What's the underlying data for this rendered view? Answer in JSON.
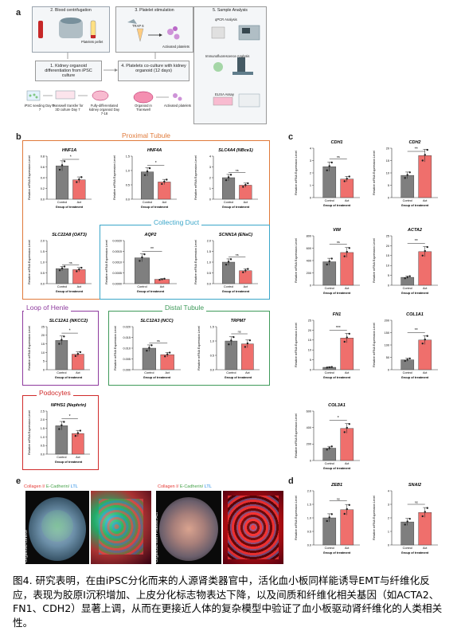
{
  "panel_letters": {
    "a": "a",
    "b": "b",
    "c": "c",
    "d": "d",
    "e": "e"
  },
  "panel_a": {
    "step2": "2. Blood centrifugation",
    "step3": "3. Platelet stimulation",
    "step5": "5. Sample Analysis",
    "platelets_pellet": "Platelets pellet",
    "trap6": "TRAP 6",
    "activated_platelets": "Activated platelets",
    "step1": "1. Kidney organoid differentiation from iPSC culture",
    "step4": "4. Platelets co-culture with kidney organoid (12 days)",
    "qpcr": "qPCR Analysis",
    "if_analysis": "Immunofluorescence Analysis",
    "elisa": "ELISA Assay",
    "ipsc_seeding": "iPSC seeding Day 0-7",
    "transwell": "Transwell transfer for 3D culture Day 7",
    "fully_diff": "Fully-differentiated kidney organoid Day 7-18",
    "organoid_transwell": "Organoid in Transwell",
    "activated_platelets2": "Activated platelets"
  },
  "sections": {
    "proximal": "Proximal Tubule",
    "collecting": "Collecting Duct",
    "henle": "Loop of Henle",
    "distal": "Distal Tubule",
    "podocytes": "Podocytes"
  },
  "colors": {
    "control": "#7f7f7f",
    "act": "#ef6f6c",
    "proximal": "#e07a3a",
    "collecting": "#3aa6c9",
    "henle": "#8e3a9e",
    "distal": "#3f9a5a",
    "podocytes": "#d02a2a",
    "step_border": "#9aa4ae"
  },
  "axis_common": {
    "ylabel": "Relative mRNA Expression Level",
    "xlabel": "Group of treatment",
    "control": "Control",
    "act": "Act"
  },
  "charts": [
    {
      "id": "hnf1a",
      "gene": "HNF1A",
      "sig": "*",
      "ticks": [
        "0.0",
        "0.2",
        "0.4",
        "0.6",
        "0.8"
      ],
      "ymax": 0.8,
      "values": [
        0.62,
        0.36
      ]
    },
    {
      "id": "hnf4a",
      "gene": "HNF4A",
      "sig": "*",
      "ticks": [
        "0.0",
        "0.5",
        "1.0",
        "1.5"
      ],
      "ymax": 1.5,
      "values": [
        0.95,
        0.6
      ]
    },
    {
      "id": "slc4a4",
      "gene": "SLC4A4 (NBce1)",
      "sig": "ns",
      "ticks": [
        "0",
        "1",
        "2",
        "3",
        "4"
      ],
      "ymax": 4,
      "values": [
        2.0,
        1.3
      ]
    },
    {
      "id": "slc22a8",
      "gene": "SLC22A8 (OAT3)",
      "sig": "ns",
      "ticks": [
        "0.0",
        "0.5",
        "1.0",
        "1.5",
        "2.0"
      ],
      "ymax": 2.0,
      "values": [
        0.7,
        0.65
      ]
    },
    {
      "id": "aqp2",
      "gene": "AQP2",
      "sig": "**",
      "ticks": [
        "0.0000",
        "0.0005",
        "0.0010",
        "0.0015",
        "0.0020"
      ],
      "ymax": 0.002,
      "values": [
        0.0012,
        0.0002
      ]
    },
    {
      "id": "scnn1a",
      "gene": "SCNN1A (ENaC)",
      "sig": "ns",
      "ticks": [
        "0.0",
        "0.5",
        "1.0",
        "1.5",
        "2.0"
      ],
      "ymax": 2.0,
      "values": [
        1.0,
        0.6
      ]
    },
    {
      "id": "slc12a1",
      "gene": "SLC12A1 (NKCC2)",
      "sig": "*",
      "ticks": [
        "0",
        "5",
        "10",
        "15",
        "20",
        "25"
      ],
      "ymax": 25,
      "values": [
        17,
        9
      ]
    },
    {
      "id": "slc12a3",
      "gene": "SLC12A3 (NCC)",
      "sig": "ns",
      "ticks": [
        "0.000",
        "0.005",
        "0.010",
        "0.015",
        "0.020"
      ],
      "ymax": 0.02,
      "values": [
        0.01,
        0.007
      ]
    },
    {
      "id": "trpm7",
      "gene": "TRPM7",
      "sig": "ns",
      "ticks": [
        "0.0",
        "0.5",
        "1.0",
        "1.5"
      ],
      "ymax": 1.5,
      "values": [
        1.0,
        0.9
      ]
    },
    {
      "id": "nphs1",
      "gene": "NPHS1 (Nephrin)",
      "sig": "*",
      "ticks": [
        "0.0",
        "0.5",
        "1.0",
        "1.5",
        "2.0",
        "2.5"
      ],
      "ymax": 2.5,
      "values": [
        1.65,
        1.2
      ]
    },
    {
      "id": "cdh1",
      "gene": "CDH1",
      "sig": "ns",
      "ticks": [
        "0",
        "1",
        "2",
        "3",
        "4"
      ],
      "ymax": 4,
      "values": [
        2.5,
        1.5
      ]
    },
    {
      "id": "cdh2",
      "gene": "CDH2",
      "sig": "**",
      "ticks": [
        "0",
        "5",
        "10",
        "15",
        "20"
      ],
      "ymax": 20,
      "values": [
        9,
        17
      ]
    },
    {
      "id": "vim",
      "gene": "VIM",
      "sig": "ns",
      "ticks": [
        "0",
        "200",
        "400",
        "600",
        "800"
      ],
      "ymax": 800,
      "values": [
        380,
        530
      ]
    },
    {
      "id": "acta2",
      "gene": "ACTA2",
      "sig": "**",
      "ticks": [
        "0",
        "5",
        "10",
        "15",
        "20",
        "25"
      ],
      "ymax": 25,
      "values": [
        4,
        17
      ]
    },
    {
      "id": "fn1",
      "gene": "FN1",
      "sig": "***",
      "ticks": [
        "0",
        "5",
        "10",
        "15",
        "20",
        "25"
      ],
      "ymax": 25,
      "values": [
        1.2,
        16
      ]
    },
    {
      "id": "col1a1",
      "gene": "COL1A1",
      "sig": "**",
      "ticks": [
        "0",
        "50",
        "100",
        "150",
        "200"
      ],
      "ymax": 200,
      "values": [
        40,
        120
      ]
    },
    {
      "id": "col3a1",
      "gene": "COL3A1",
      "sig": "*",
      "ticks": [
        "0",
        "200",
        "400",
        "600"
      ],
      "ymax": 600,
      "values": [
        150,
        390
      ]
    },
    {
      "id": "zeb1",
      "gene": "ZEB1",
      "sig": "ns",
      "ticks": [
        "0.0",
        "0.5",
        "1.0",
        "1.5",
        "2.0"
      ],
      "ymax": 2.0,
      "values": [
        1.0,
        1.3
      ]
    },
    {
      "id": "snai2",
      "gene": "SNAI2",
      "sig": "ns",
      "ticks": [
        "0",
        "1",
        "2",
        "3",
        "4"
      ],
      "ymax": 4,
      "values": [
        1.7,
        2.4
      ]
    }
  ],
  "panel_e": {
    "legend_collagen": "Collagen I/",
    "legend_ecad": " E-Cadherin/",
    "legend_ltl": " LTL",
    "label_control": "Organoid control",
    "label_treated": "Organoid with Platelet Act"
  },
  "caption": "图4. 研究表明，在由iPSC分化而来的人源肾类器官中，活化血小板同样能诱导EMT与纤维化反应，表现为胶原I沉积增加、上皮分化标志物表达下降，以及间质和纤维化相关基因（如ACTA2、FN1、CDH2）显著上调，从而在更接近人体的复杂模型中验证了血小板驱动肾纤维化的人类相关性。"
}
